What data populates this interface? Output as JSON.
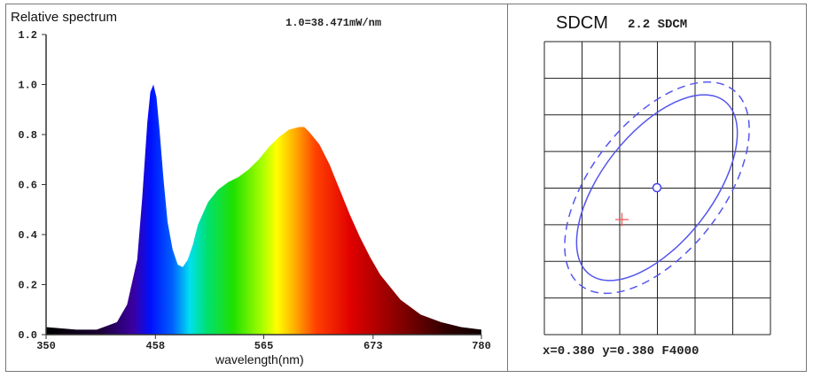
{
  "chart_data": [
    {
      "type": "area",
      "title": "Relative spectrum",
      "annotation": "1.0=38.471mW/nm",
      "xlabel": "wavelength(nm)",
      "ylabel": "",
      "xlim": [
        350,
        780
      ],
      "ylim": [
        0,
        1.2
      ],
      "xticks": [
        "350",
        "458",
        "565",
        "673",
        "780"
      ],
      "xtick_values": [
        350,
        458,
        565,
        673,
        780
      ],
      "yticks": [
        "0.0",
        "0.2",
        "0.4",
        "0.6",
        "0.8",
        "1.0",
        "1.2"
      ],
      "ytick_values": [
        0,
        0.2,
        0.4,
        0.6,
        0.8,
        1.0,
        1.2
      ],
      "x": [
        350,
        380,
        400,
        420,
        430,
        440,
        445,
        450,
        453,
        456,
        459,
        462,
        466,
        470,
        475,
        480,
        485,
        490,
        495,
        500,
        510,
        520,
        530,
        540,
        550,
        560,
        570,
        580,
        590,
        600,
        605,
        610,
        620,
        630,
        640,
        650,
        660,
        670,
        680,
        690,
        700,
        720,
        740,
        760,
        780
      ],
      "y": [
        0.03,
        0.02,
        0.02,
        0.05,
        0.12,
        0.3,
        0.55,
        0.85,
        0.97,
        1.0,
        0.95,
        0.82,
        0.62,
        0.45,
        0.34,
        0.28,
        0.27,
        0.3,
        0.36,
        0.44,
        0.53,
        0.58,
        0.61,
        0.63,
        0.66,
        0.7,
        0.75,
        0.79,
        0.82,
        0.83,
        0.83,
        0.81,
        0.76,
        0.68,
        0.58,
        0.48,
        0.39,
        0.31,
        0.24,
        0.19,
        0.14,
        0.08,
        0.05,
        0.03,
        0.02
      ]
    },
    {
      "type": "scatter",
      "title": "SDCM",
      "subtitle": "2.2 SDCM",
      "footer": "x=0.380 y=0.380 F4000",
      "grid_columns": 6,
      "grid_rows": 8,
      "center_point": "target",
      "measured_point": "red cross",
      "ellipses": [
        "solid",
        "dashed"
      ]
    }
  ]
}
